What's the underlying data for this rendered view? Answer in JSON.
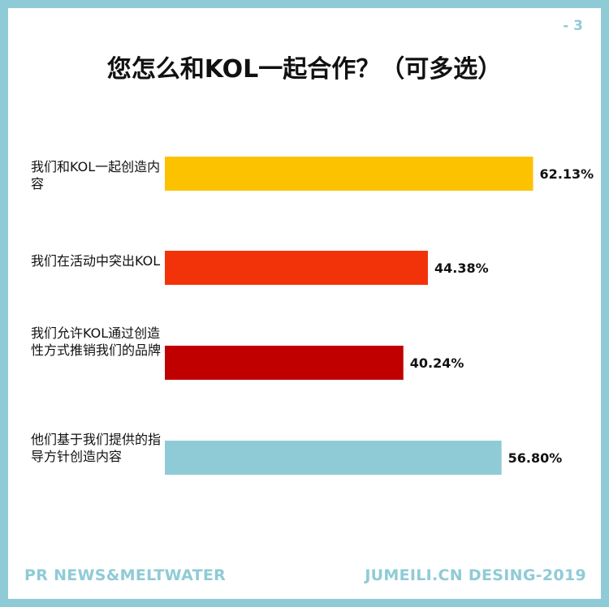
{
  "page_number": "- 3",
  "footer": {
    "left": "PR NEWS&MELTWATER",
    "right": "JUMEILI.CN DESING-2019"
  },
  "chart_data": {
    "type": "bar",
    "orientation": "horizontal",
    "title": "您怎么和KOL一起合作？（可多选）",
    "categories": [
      "我们和KOL一起创造内容",
      "我们在活动中突出KOL",
      "我们允许KOL通过创造性方式推销我们的品牌",
      "他们基于我们提供的指导方针创造内容"
    ],
    "values": [
      62.13,
      44.38,
      40.24,
      56.8
    ],
    "value_labels": [
      "62.13%",
      "44.38%",
      "40.24%",
      "56.80%"
    ],
    "colors": [
      "#fcc200",
      "#f2330a",
      "#c00000",
      "#8fcbd6"
    ],
    "xlim": [
      0,
      100
    ],
    "grid": false,
    "legend": "none"
  }
}
